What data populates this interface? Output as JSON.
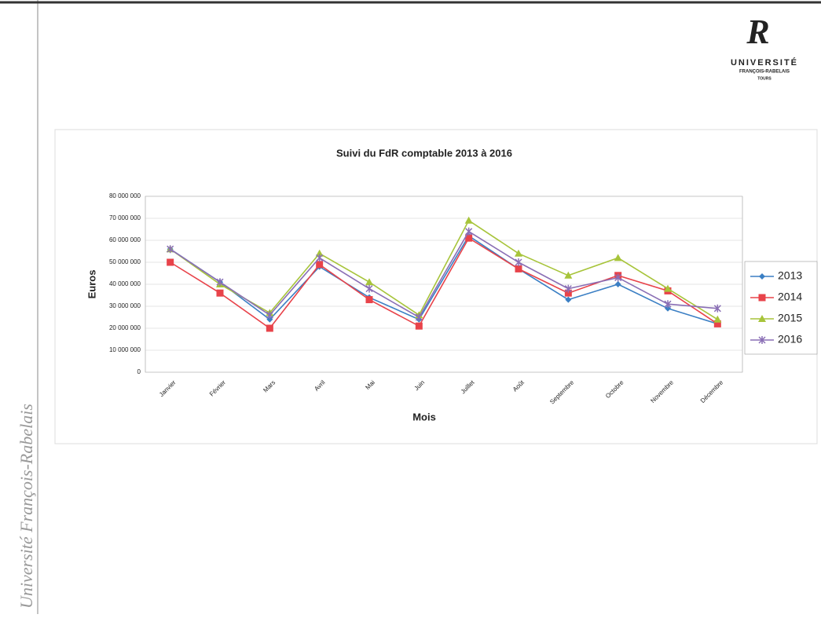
{
  "logo": {
    "name": "UNIVERSITÉ",
    "subname": "FRANÇOIS-RABELAIS",
    "city": "TOURS"
  },
  "sidebar": "Université François-Rabelais",
  "chart_data": {
    "type": "line",
    "title": "Suivi du FdR comptable 2013 à 2016",
    "xlabel": "Mois",
    "ylabel": "Euros",
    "categories": [
      "Janvier",
      "Février",
      "Mars",
      "Avril",
      "Mai",
      "Juin",
      "Juillet",
      "Août",
      "Septembre",
      "Octobre",
      "Novembre",
      "Décembre"
    ],
    "series": [
      {
        "name": "2013",
        "color": "#3b7fc4",
        "marker": "diamond",
        "values": [
          56000000,
          41000000,
          24000000,
          48000000,
          34000000,
          24000000,
          62000000,
          47000000,
          33000000,
          40000000,
          29000000,
          22000000
        ]
      },
      {
        "name": "2014",
        "color": "#e8434a",
        "marker": "square",
        "values": [
          50000000,
          36000000,
          20000000,
          49000000,
          33000000,
          21000000,
          61000000,
          47000000,
          36000000,
          44000000,
          37000000,
          22000000
        ]
      },
      {
        "name": "2015",
        "color": "#a7c43a",
        "marker": "triangle",
        "values": [
          56000000,
          40000000,
          27000000,
          54000000,
          41000000,
          26000000,
          69000000,
          54000000,
          44000000,
          52000000,
          38000000,
          24000000
        ]
      },
      {
        "name": "2016",
        "color": "#8a6fb5",
        "marker": "x",
        "values": [
          56000000,
          41000000,
          26000000,
          52000000,
          38000000,
          25000000,
          64000000,
          50000000,
          38000000,
          43000000,
          31000000,
          29000000
        ]
      }
    ],
    "ylim": [
      0,
      80000000
    ],
    "yticks": [
      0,
      {
        "value": 10000000,
        "label": "10 000 000"
      },
      {
        "value": 20000000,
        "label": "20 000 000"
      },
      {
        "value": 30000000,
        "label": "30 000 000"
      },
      {
        "value": 40000000,
        "label": "40 000 000"
      },
      {
        "value": 50000000,
        "label": "50 000 000"
      },
      {
        "value": 60000000,
        "label": "60 000 000"
      },
      {
        "value": 70000000,
        "label": "70 000 000"
      },
      {
        "value": 80000000,
        "label": "80 000 000"
      }
    ],
    "grid": true,
    "legend": "right"
  }
}
